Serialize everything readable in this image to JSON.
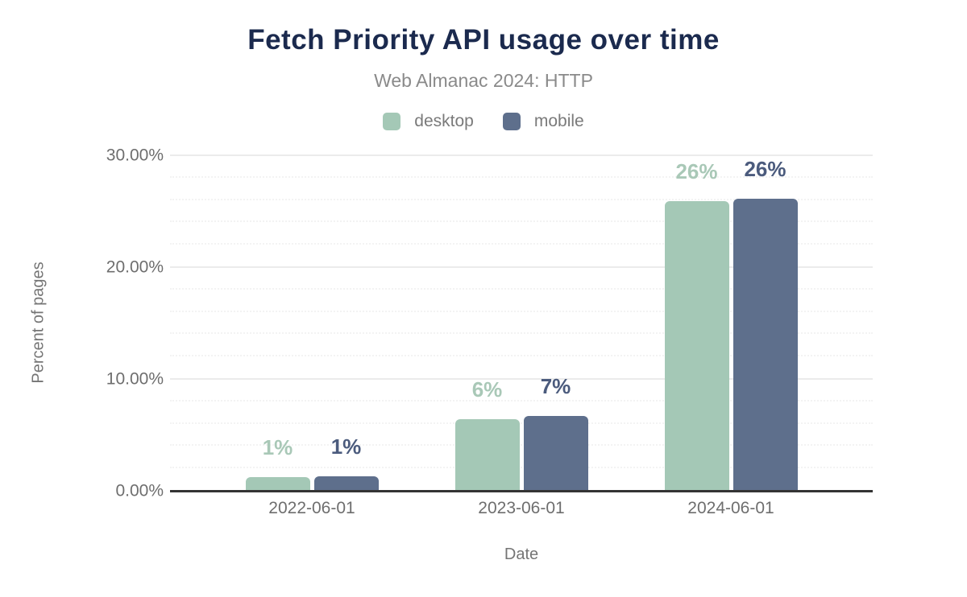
{
  "header": {
    "title": "Fetch Priority API usage over time",
    "subtitle": "Web Almanac 2024: HTTP"
  },
  "legend": [
    {
      "label": "desktop",
      "color": "#a4c8b6"
    },
    {
      "label": "mobile",
      "color": "#5e6f8c"
    }
  ],
  "axes": {
    "xlabel": "Date",
    "ylabel": "Percent of pages"
  },
  "chart_data": {
    "type": "bar",
    "title": "Fetch Priority API usage over time",
    "subtitle": "Web Almanac 2024: HTTP",
    "categories": [
      "2022-06-01",
      "2023-06-01",
      "2024-06-01"
    ],
    "series": [
      {
        "name": "desktop",
        "color": "#a4c8b6",
        "label_color": "#a9c8b7",
        "values": [
          1.2,
          6.4,
          25.9
        ],
        "labels": [
          "1%",
          "6%",
          "26%"
        ]
      },
      {
        "name": "mobile",
        "color": "#5e6f8c",
        "label_color": "#4b5b7d",
        "values": [
          1.3,
          6.7,
          26.1
        ],
        "labels": [
          "1%",
          "7%",
          "26%"
        ]
      }
    ],
    "xlabel": "Date",
    "ylabel": "Percent of pages",
    "ylim": [
      0,
      30
    ],
    "yticks": [
      {
        "value": 0,
        "label": "0.00%"
      },
      {
        "value": 10,
        "label": "10.00%"
      },
      {
        "value": 20,
        "label": "20.00%"
      },
      {
        "value": 30,
        "label": "30.00%"
      }
    ],
    "minor_grid_step": 2,
    "major_grid_step": 10,
    "grid": true,
    "legend_position": "top"
  },
  "colors": {
    "title": "#1b2a4e",
    "subtitle": "#8a8a8a",
    "axis_text": "#6e6e6e",
    "axis_line": "#343434",
    "major_grid": "#ebebeb",
    "minor_grid": "#f3f3f3",
    "background": "#ffffff"
  }
}
